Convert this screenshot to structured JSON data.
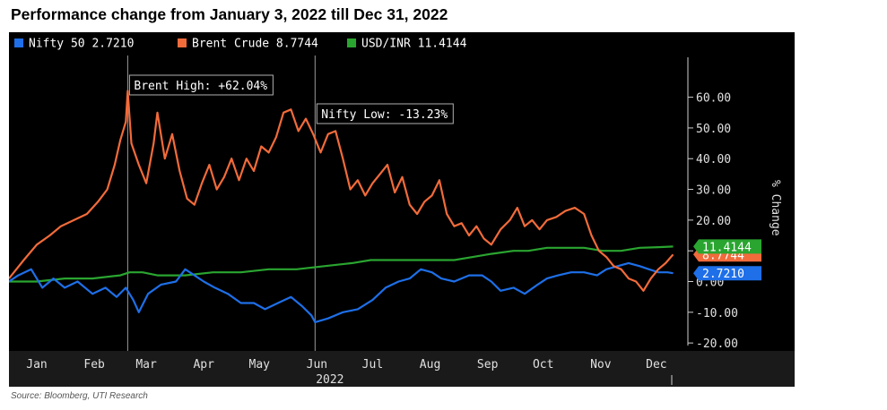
{
  "title": "Performance change from January 3, 2022 till Dec 31, 2022",
  "source": "Source: Bloomberg, UTI Research",
  "chart_data": {
    "type": "line",
    "title": "Performance change from January 3, 2022 till Dec 31, 2022",
    "ylabel": "% Change",
    "xlabel": "2022",
    "ylim": [
      -22,
      73
    ],
    "yticks": [
      60,
      50,
      40,
      30,
      20,
      10,
      0,
      -10,
      -20
    ],
    "ytick_labels": [
      "60.00",
      "50.00",
      "40.00",
      "30.00",
      "20.00",
      "10.00",
      "0.00",
      "-10.00",
      "-20.00"
    ],
    "xlim": [
      0,
      365
    ],
    "x_unit": "day of 2022",
    "months": [
      {
        "label": "Jan",
        "day": 15
      },
      {
        "label": "Feb",
        "day": 46
      },
      {
        "label": "Mar",
        "day": 74
      },
      {
        "label": "Apr",
        "day": 105
      },
      {
        "label": "May",
        "day": 135
      },
      {
        "label": "Jun",
        "day": 166
      },
      {
        "label": "Jul",
        "day": 196
      },
      {
        "label": "Aug",
        "day": 227
      },
      {
        "label": "Sep",
        "day": 258
      },
      {
        "label": "Oct",
        "day": 288
      },
      {
        "label": "Nov",
        "day": 319
      },
      {
        "label": "Dec",
        "day": 349
      }
    ],
    "grid": false,
    "legend_position": "top-left",
    "background": "#000000",
    "series": [
      {
        "name": "Nifty 50",
        "legend_value": "2.7210",
        "end_label": "2.7210",
        "color": "#1e6fe8",
        "points": [
          [
            0,
            0
          ],
          [
            5,
            2
          ],
          [
            12,
            4
          ],
          [
            18,
            -2
          ],
          [
            24,
            1
          ],
          [
            30,
            -2
          ],
          [
            37,
            0
          ],
          [
            45,
            -4
          ],
          [
            52,
            -2
          ],
          [
            58,
            -5
          ],
          [
            63,
            -2
          ],
          [
            67,
            -6
          ],
          [
            70,
            -10
          ],
          [
            75,
            -4
          ],
          [
            82,
            -1
          ],
          [
            90,
            0
          ],
          [
            95,
            4
          ],
          [
            100,
            2
          ],
          [
            105,
            0
          ],
          [
            111,
            -2
          ],
          [
            118,
            -4
          ],
          [
            125,
            -7
          ],
          [
            132,
            -7
          ],
          [
            138,
            -9
          ],
          [
            145,
            -7
          ],
          [
            152,
            -5
          ],
          [
            158,
            -8
          ],
          [
            163,
            -11
          ],
          [
            165,
            -13.23
          ],
          [
            172,
            -12
          ],
          [
            180,
            -10
          ],
          [
            188,
            -9
          ],
          [
            196,
            -6
          ],
          [
            203,
            -2
          ],
          [
            210,
            0
          ],
          [
            216,
            1
          ],
          [
            222,
            4
          ],
          [
            228,
            3
          ],
          [
            233,
            1
          ],
          [
            240,
            0
          ],
          [
            248,
            2
          ],
          [
            255,
            2
          ],
          [
            260,
            0
          ],
          [
            265,
            -3
          ],
          [
            272,
            -2
          ],
          [
            278,
            -4
          ],
          [
            285,
            -1
          ],
          [
            290,
            1
          ],
          [
            296,
            2
          ],
          [
            303,
            3
          ],
          [
            310,
            3
          ],
          [
            317,
            2
          ],
          [
            322,
            4
          ],
          [
            328,
            5
          ],
          [
            334,
            6
          ],
          [
            340,
            5
          ],
          [
            345,
            4
          ],
          [
            350,
            3
          ],
          [
            355,
            3
          ],
          [
            358,
            2.7
          ]
        ],
        "labels": [
          {
            "text": "Nifty Low: -13.23%",
            "x": 165,
            "y": -13.23
          }
        ]
      },
      {
        "name": "Brent Crude",
        "legend_value": "8.7744",
        "end_label": "8.7744",
        "color": "#f26b3a",
        "points": [
          [
            0,
            1
          ],
          [
            8,
            7
          ],
          [
            15,
            12
          ],
          [
            22,
            15
          ],
          [
            28,
            18
          ],
          [
            35,
            20
          ],
          [
            42,
            22
          ],
          [
            48,
            26
          ],
          [
            53,
            30
          ],
          [
            57,
            38
          ],
          [
            60,
            46
          ],
          [
            63,
            52
          ],
          [
            64,
            62.04
          ],
          [
            66,
            45
          ],
          [
            70,
            38
          ],
          [
            74,
            32
          ],
          [
            78,
            45
          ],
          [
            80,
            55
          ],
          [
            84,
            40
          ],
          [
            88,
            48
          ],
          [
            92,
            36
          ],
          [
            96,
            27
          ],
          [
            100,
            25
          ],
          [
            104,
            32
          ],
          [
            108,
            38
          ],
          [
            112,
            30
          ],
          [
            116,
            34
          ],
          [
            120,
            40
          ],
          [
            124,
            33
          ],
          [
            128,
            40
          ],
          [
            132,
            36
          ],
          [
            136,
            44
          ],
          [
            140,
            42
          ],
          [
            144,
            47
          ],
          [
            148,
            55
          ],
          [
            152,
            56
          ],
          [
            156,
            49
          ],
          [
            160,
            53
          ],
          [
            164,
            48
          ],
          [
            168,
            42
          ],
          [
            172,
            48
          ],
          [
            176,
            49
          ],
          [
            180,
            40
          ],
          [
            184,
            30
          ],
          [
            188,
            33
          ],
          [
            192,
            28
          ],
          [
            196,
            32
          ],
          [
            200,
            35
          ],
          [
            204,
            38
          ],
          [
            208,
            29
          ],
          [
            212,
            34
          ],
          [
            216,
            25
          ],
          [
            220,
            22
          ],
          [
            224,
            26
          ],
          [
            228,
            28
          ],
          [
            232,
            33
          ],
          [
            236,
            22
          ],
          [
            240,
            18
          ],
          [
            244,
            19
          ],
          [
            248,
            15
          ],
          [
            252,
            18
          ],
          [
            256,
            14
          ],
          [
            260,
            12
          ],
          [
            265,
            17
          ],
          [
            270,
            20
          ],
          [
            274,
            24
          ],
          [
            278,
            18
          ],
          [
            282,
            20
          ],
          [
            286,
            17
          ],
          [
            290,
            20
          ],
          [
            295,
            21
          ],
          [
            300,
            23
          ],
          [
            305,
            24
          ],
          [
            310,
            22
          ],
          [
            314,
            15
          ],
          [
            318,
            10
          ],
          [
            322,
            8
          ],
          [
            326,
            5
          ],
          [
            330,
            4
          ],
          [
            334,
            1
          ],
          [
            338,
            0
          ],
          [
            342,
            -3
          ],
          [
            346,
            1
          ],
          [
            350,
            4
          ],
          [
            354,
            6
          ],
          [
            358,
            8.8
          ]
        ],
        "labels": [
          {
            "text": "Brent High: +62.04%",
            "x": 64,
            "y": 62.04
          }
        ]
      },
      {
        "name": "USD/INR",
        "legend_value": "11.4144",
        "end_label": "11.4144",
        "color": "#2aa530",
        "points": [
          [
            0,
            0
          ],
          [
            15,
            0
          ],
          [
            30,
            1
          ],
          [
            45,
            1
          ],
          [
            60,
            2
          ],
          [
            65,
            3
          ],
          [
            72,
            3
          ],
          [
            80,
            2
          ],
          [
            95,
            2
          ],
          [
            110,
            3
          ],
          [
            125,
            3
          ],
          [
            140,
            4
          ],
          [
            155,
            4
          ],
          [
            170,
            5
          ],
          [
            185,
            6
          ],
          [
            195,
            7
          ],
          [
            210,
            7
          ],
          [
            225,
            7
          ],
          [
            240,
            7
          ],
          [
            250,
            8
          ],
          [
            260,
            9
          ],
          [
            272,
            10
          ],
          [
            280,
            10
          ],
          [
            290,
            11
          ],
          [
            300,
            11
          ],
          [
            310,
            11
          ],
          [
            320,
            10
          ],
          [
            330,
            10
          ],
          [
            340,
            11
          ],
          [
            350,
            11.2
          ],
          [
            358,
            11.4
          ]
        ],
        "labels": []
      }
    ]
  }
}
